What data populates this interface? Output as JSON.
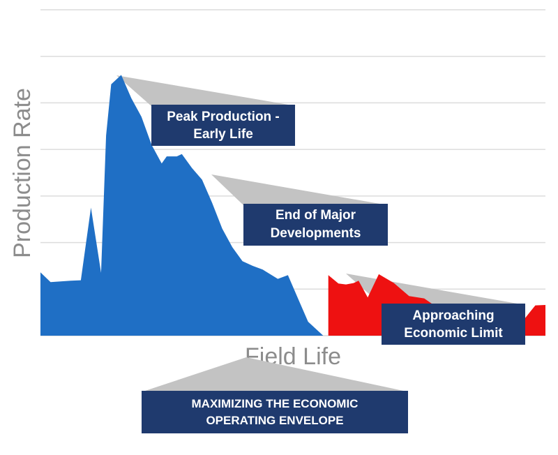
{
  "chart_data": {
    "type": "area",
    "xlabel": "Field Life",
    "ylabel": "Production Rate",
    "xlim": [
      0,
      100
    ],
    "ylim": [
      0,
      7
    ],
    "grid": true,
    "series": [
      {
        "color": "#1f6fc5",
        "x": [
          0,
          2,
          6,
          8,
          10,
          12,
          13,
          14,
          16,
          18,
          20,
          22,
          24,
          25,
          27,
          28,
          30,
          32,
          34,
          36,
          38,
          40,
          42,
          44,
          47,
          49,
          51,
          53,
          56,
          59,
          60.5,
          61
        ],
        "values": [
          1.36,
          1.15,
          1.18,
          1.19,
          2.75,
          1.35,
          4.3,
          5.4,
          5.6,
          5.1,
          4.7,
          4.1,
          3.7,
          3.85,
          3.85,
          3.9,
          3.6,
          3.35,
          2.85,
          2.3,
          1.9,
          1.6,
          1.5,
          1.42,
          1.22,
          1.3,
          0.8,
          0.3,
          0,
          0,
          0,
          0
        ]
      },
      {
        "color": "#ee1111",
        "x": [
          57,
          59,
          60.5,
          62,
          63,
          64.8,
          67,
          70,
          73,
          76,
          78,
          80,
          82,
          84,
          86,
          88,
          90,
          92,
          94,
          96,
          98,
          100
        ],
        "values": [
          1.3,
          1.12,
          1.1,
          1.13,
          1.18,
          0.82,
          1.32,
          1.13,
          0.85,
          0.8,
          0.65,
          0.58,
          0.5,
          0.45,
          0.43,
          0.4,
          0.35,
          0.4,
          0.4,
          0.38,
          0.65,
          0.66
        ]
      }
    ]
  },
  "callouts": {
    "peak": {
      "line1": "Peak Production -",
      "line2": "Early Life"
    },
    "development": {
      "line1": "End of Major",
      "line2": "Developments"
    },
    "economic": {
      "line1": "Approaching",
      "line2": "Economic Limit"
    },
    "envelope": {
      "line1": "MAXIMIZING THE ECONOMIC",
      "line2": "OPERATING ENVELOPE"
    }
  },
  "colors": {
    "callout_fill": "#1f3a6e",
    "callout_text": "#ffffff",
    "wedge": "#c3c3c3",
    "grid": "#dcdcdc",
    "axis_text": "#8c8c8c"
  }
}
